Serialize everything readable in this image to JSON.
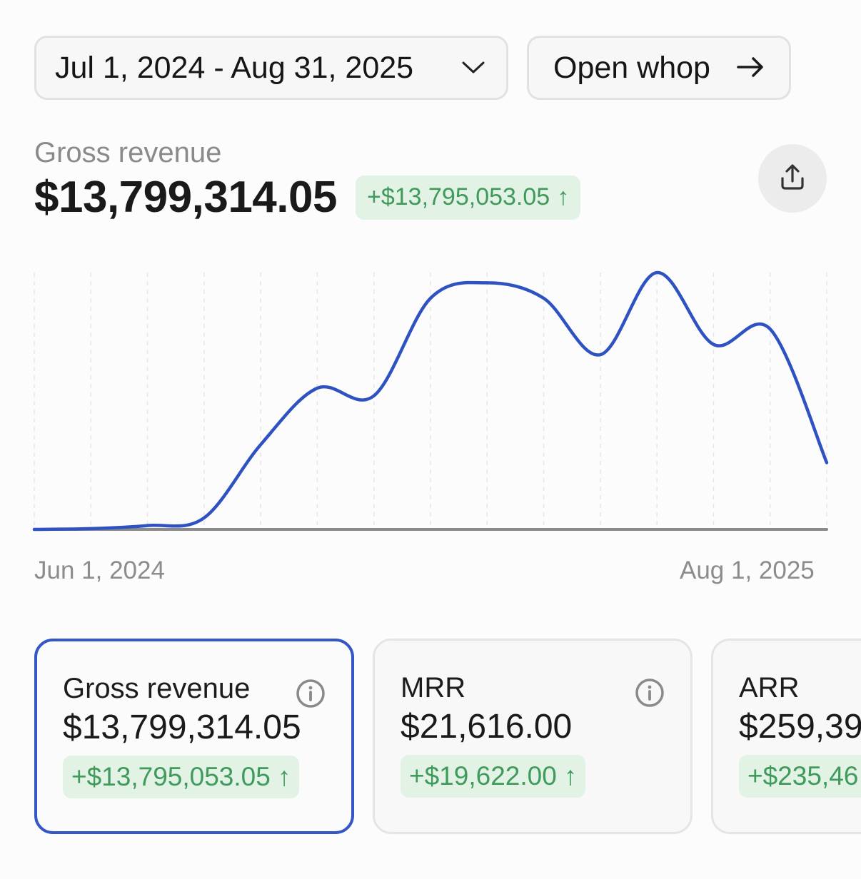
{
  "toolbar": {
    "date_range": "Jul 1, 2024 - Aug 31, 2025",
    "open_whop_label": "Open whop"
  },
  "summary": {
    "label": "Gross revenue",
    "value": "$13,799,314.05",
    "delta": "+$13,795,053.05",
    "delta_arrow": "↑"
  },
  "chart_data": {
    "type": "line",
    "x_start_label": "Jun 1, 2024",
    "x_end_label": "Aug 1, 2025",
    "xlim": [
      0,
      14
    ],
    "ylim": [
      0,
      100
    ],
    "grid_vertical": true,
    "series": [
      {
        "color": "#2f52c2",
        "x": [
          0,
          1,
          2,
          3,
          4,
          5,
          6,
          7,
          8,
          9,
          10,
          11,
          12,
          13,
          14
        ],
        "y": [
          0,
          0.3,
          1.5,
          4.5,
          33,
          55,
          52,
          90,
          96,
          90,
          68,
          100,
          72,
          78,
          26
        ]
      },
      {
        "color": "#8a8a8a",
        "x": [
          0,
          14
        ],
        "y": [
          0,
          0
        ]
      }
    ],
    "colors": {
      "accent": "#2f52c2",
      "baseline": "#8a8a8a",
      "grid": "#e6e6e6"
    }
  },
  "cards": [
    {
      "label": "Gross revenue",
      "value": "$13,799,314.05",
      "delta": "+$13,795,053.05",
      "arrow": "↑",
      "selected": true
    },
    {
      "label": "MRR",
      "value": "$21,616.00",
      "delta": "+$19,622.00",
      "arrow": "↑",
      "selected": false
    },
    {
      "label": "ARR",
      "value": "$259,39",
      "delta": "+$235,46",
      "arrow": "",
      "selected": false
    }
  ],
  "colors": {
    "accent_blue": "#3457c7",
    "positive_green": "#3f9a5b",
    "positive_bg": "#e2f2e5"
  }
}
